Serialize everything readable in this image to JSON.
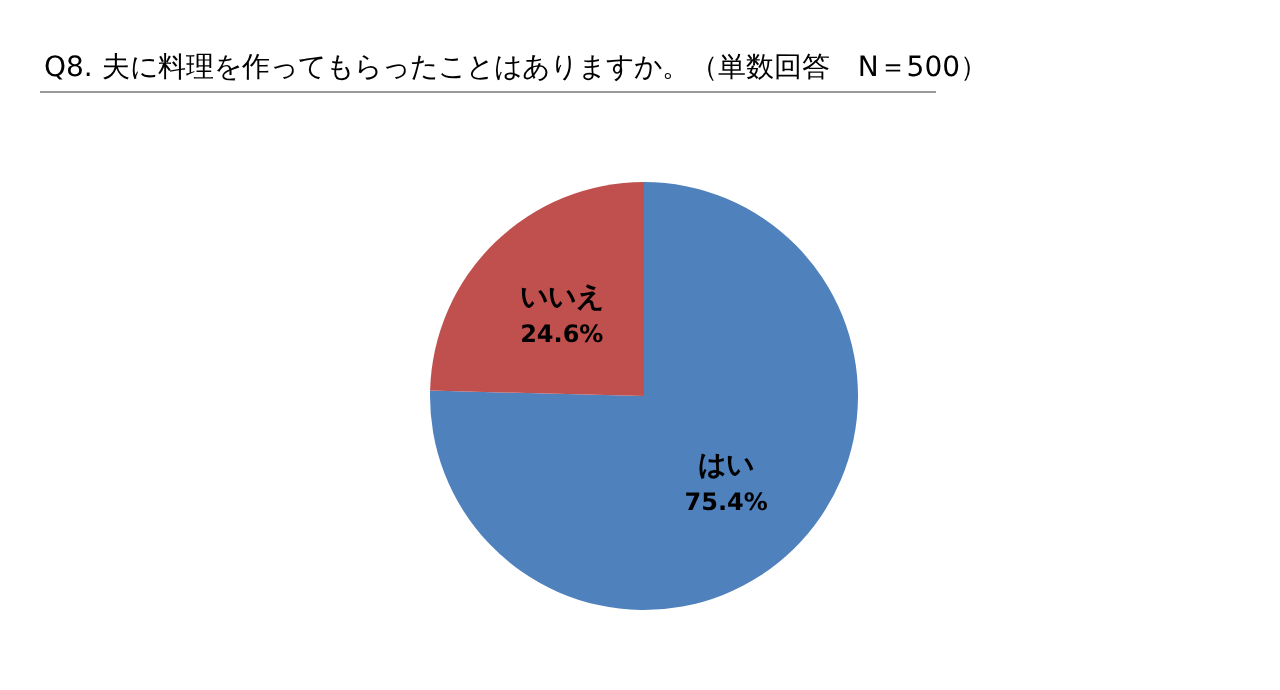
{
  "chart_data": {
    "type": "pie",
    "title": "Q8. 夫に料理を作ってもらったことはありますか。（単数回答　N＝500）",
    "categories": [
      "はい",
      "いいえ"
    ],
    "values": [
      75.4,
      24.6
    ],
    "value_labels": [
      "75.4%",
      "24.6%"
    ],
    "colors": [
      "#4f81bd",
      "#c0504d"
    ],
    "legend": false
  }
}
